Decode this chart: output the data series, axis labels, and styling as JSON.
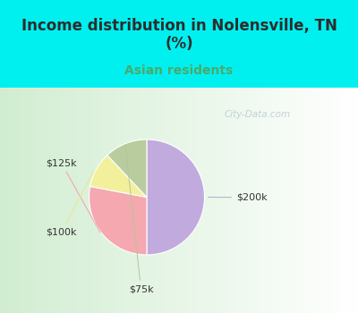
{
  "title": "Income distribution in Nolensville, TN\n(%)",
  "subtitle": "Asian residents",
  "title_color": "#2d2d2d",
  "subtitle_color": "#4aaa6a",
  "bg_top_color": "#00f0f0",
  "slices": [
    {
      "label": "$200k",
      "value": 50,
      "color": "#c0aade"
    },
    {
      "label": "$125k",
      "value": 28,
      "color": "#f5a8b0"
    },
    {
      "label": "$100k",
      "value": 10,
      "color": "#f2f09a"
    },
    {
      "label": "$75k",
      "value": 12,
      "color": "#b8cc9e"
    }
  ],
  "watermark": "City-Data.com",
  "figsize": [
    4.0,
    3.5
  ],
  "dpi": 100,
  "title_fontsize": 12,
  "subtitle_fontsize": 10
}
